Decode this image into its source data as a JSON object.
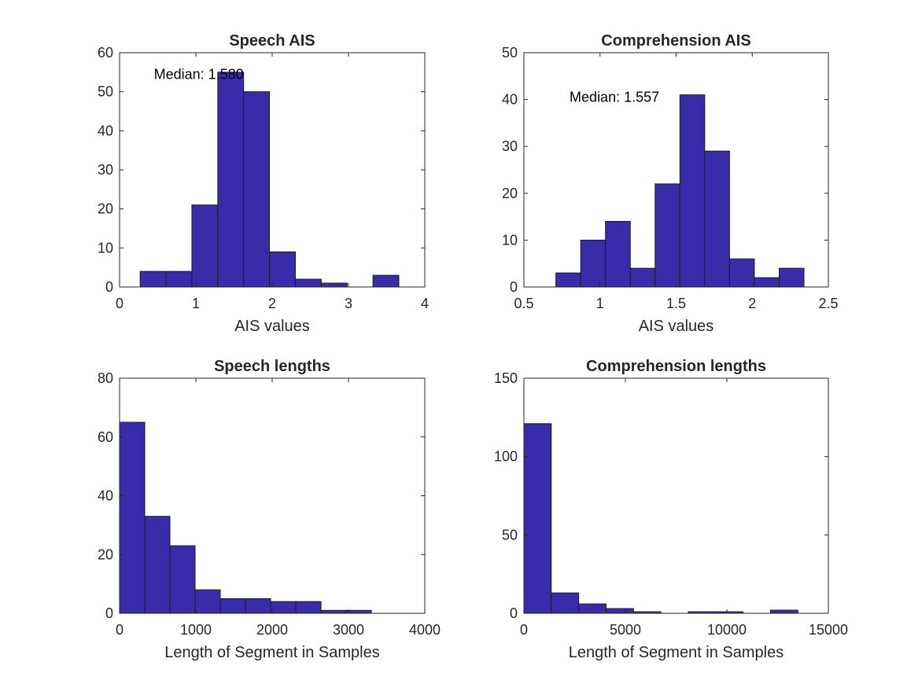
{
  "colors": {
    "bar_fill": "#3A2BAB",
    "bar_edge": "#1E1E1E",
    "axis": "#262626"
  },
  "chart_data": [
    {
      "type": "bar",
      "title": "Speech AIS",
      "xlabel": "AIS values",
      "ylabel": "",
      "xlim": [
        0,
        4
      ],
      "ylim": [
        0,
        60
      ],
      "xticks": [
        0,
        1,
        2,
        3,
        4
      ],
      "yticks": [
        0,
        10,
        20,
        30,
        40,
        50,
        60
      ],
      "xtick_labels": [
        "0",
        "1",
        "2",
        "3",
        "4"
      ],
      "ytick_labels": [
        "0",
        "10",
        "20",
        "30",
        "40",
        "50",
        "60"
      ],
      "bin_edges": [
        0.27,
        0.609,
        0.948,
        1.287,
        1.626,
        1.965,
        2.304,
        2.643,
        2.982,
        3.321,
        3.66
      ],
      "values": [
        4,
        4,
        21,
        55,
        50,
        9,
        2,
        1,
        0,
        3
      ],
      "annotation": {
        "text": "Median: 1.580",
        "x": 0.45,
        "y": 54.5
      },
      "grid": false
    },
    {
      "type": "bar",
      "title": "Comprehension AIS",
      "xlabel": "AIS values",
      "ylabel": "",
      "xlim": [
        0.5,
        2.5
      ],
      "ylim": [
        0,
        50
      ],
      "xticks": [
        0.5,
        1,
        1.5,
        2,
        2.5
      ],
      "yticks": [
        0,
        10,
        20,
        30,
        40,
        50
      ],
      "xtick_labels": [
        "0.5",
        "1",
        "1.5",
        "2",
        "2.5"
      ],
      "ytick_labels": [
        "0",
        "10",
        "20",
        "30",
        "40",
        "50"
      ],
      "bin_edges": [
        0.71,
        0.873,
        1.036,
        1.199,
        1.362,
        1.525,
        1.688,
        1.851,
        2.014,
        2.177,
        2.34
      ],
      "values": [
        3,
        10,
        14,
        4,
        22,
        41,
        29,
        6,
        2,
        4
      ],
      "annotation": {
        "text": "Median: 1.557",
        "x": 0.8,
        "y": 40.5
      },
      "grid": false
    },
    {
      "type": "bar",
      "title": "Speech lengths",
      "xlabel": "Length of Segment in Samples",
      "ylabel": "",
      "xlim": [
        0,
        4000
      ],
      "ylim": [
        0,
        80
      ],
      "xticks": [
        0,
        1000,
        2000,
        3000,
        4000
      ],
      "yticks": [
        0,
        20,
        40,
        60,
        80
      ],
      "xtick_labels": [
        "0",
        "1000",
        "2000",
        "3000",
        "4000"
      ],
      "ytick_labels": [
        "0",
        "20",
        "40",
        "60",
        "80"
      ],
      "bin_edges": [
        0,
        330,
        660,
        990,
        1320,
        1650,
        1980,
        2310,
        2640,
        2970,
        3300
      ],
      "values": [
        65,
        33,
        23,
        8,
        5,
        5,
        4,
        4,
        1,
        1
      ],
      "grid": false
    },
    {
      "type": "bar",
      "title": "Comprehension lengths",
      "xlabel": "Length of Segment in Samples",
      "ylabel": "",
      "xlim": [
        0,
        15000
      ],
      "ylim": [
        0,
        150
      ],
      "xticks": [
        0,
        5000,
        10000,
        15000
      ],
      "yticks": [
        0,
        50,
        100,
        150
      ],
      "xtick_labels": [
        "0",
        "5000",
        "10000",
        "15000"
      ],
      "ytick_labels": [
        "0",
        "50",
        "100",
        "150"
      ],
      "bin_edges": [
        0,
        1350,
        2700,
        4050,
        5400,
        6750,
        8100,
        9450,
        10800,
        12150,
        13500
      ],
      "values": [
        121,
        13,
        6,
        3,
        1,
        0,
        1,
        1,
        0,
        2
      ],
      "grid": false
    }
  ]
}
